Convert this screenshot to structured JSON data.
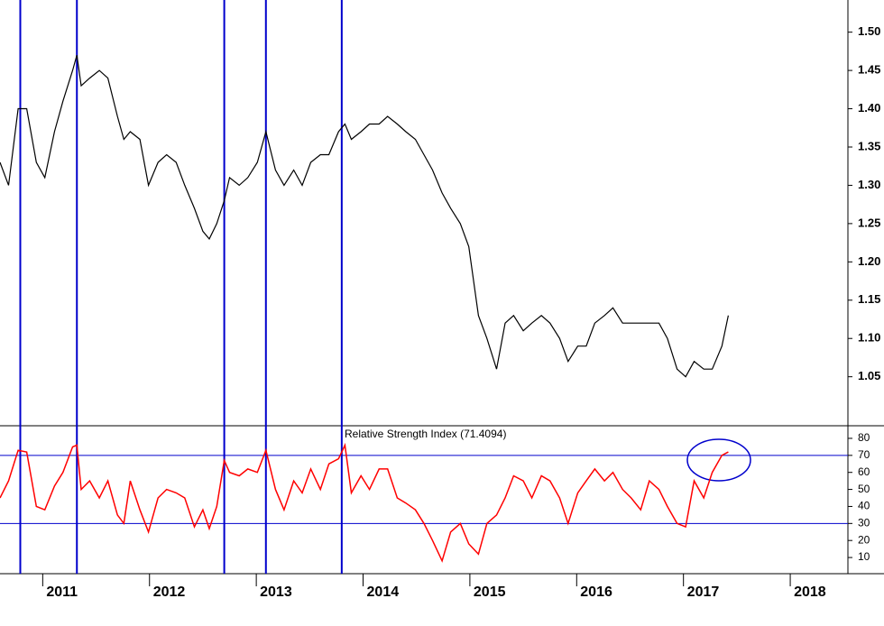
{
  "chart_data": [
    {
      "type": "line",
      "color": "#000000",
      "x": [
        2010.6,
        2010.68,
        2010.77,
        2010.85,
        2010.94,
        2011.02,
        2011.11,
        2011.19,
        2011.28,
        2011.32,
        2011.36,
        2011.44,
        2011.53,
        2011.61,
        2011.7,
        2011.76,
        2011.82,
        2011.91,
        2011.99,
        2012.08,
        2012.16,
        2012.25,
        2012.33,
        2012.42,
        2012.5,
        2012.56,
        2012.63,
        2012.7,
        2012.75,
        2012.84,
        2012.92,
        2013.01,
        2013.09,
        2013.18,
        2013.26,
        2013.35,
        2013.43,
        2013.51,
        2013.6,
        2013.68,
        2013.77,
        2013.83,
        2013.89,
        2013.98,
        2014.06,
        2014.15,
        2014.23,
        2014.32,
        2014.4,
        2014.49,
        2014.57,
        2014.65,
        2014.74,
        2014.82,
        2014.91,
        2014.99,
        2015.08,
        2015.16,
        2015.25,
        2015.33,
        2015.41,
        2015.5,
        2015.58,
        2015.67,
        2015.75,
        2015.84,
        2015.92,
        2016.01,
        2016.09,
        2016.17,
        2016.26,
        2016.34,
        2016.43,
        2016.51,
        2016.6,
        2016.68,
        2016.77,
        2016.85,
        2016.94,
        2017.02,
        2017.1,
        2017.19,
        2017.27,
        2017.36,
        2017.42
      ],
      "values": [
        1.33,
        1.3,
        1.4,
        1.4,
        1.33,
        1.31,
        1.37,
        1.41,
        1.45,
        1.47,
        1.43,
        1.44,
        1.45,
        1.44,
        1.39,
        1.36,
        1.37,
        1.36,
        1.3,
        1.33,
        1.34,
        1.33,
        1.3,
        1.27,
        1.24,
        1.23,
        1.25,
        1.28,
        1.31,
        1.3,
        1.31,
        1.33,
        1.37,
        1.32,
        1.3,
        1.32,
        1.3,
        1.33,
        1.34,
        1.34,
        1.37,
        1.38,
        1.36,
        1.37,
        1.38,
        1.38,
        1.39,
        1.38,
        1.37,
        1.36,
        1.34,
        1.32,
        1.29,
        1.27,
        1.25,
        1.22,
        1.13,
        1.1,
        1.06,
        1.12,
        1.13,
        1.11,
        1.12,
        1.13,
        1.12,
        1.1,
        1.07,
        1.09,
        1.09,
        1.12,
        1.13,
        1.14,
        1.12,
        1.12,
        1.12,
        1.12,
        1.12,
        1.1,
        1.06,
        1.05,
        1.07,
        1.06,
        1.06,
        1.09,
        1.13
      ],
      "xlim": [
        2010.6,
        2018.54
      ],
      "ylim": [
        0.986,
        1.542
      ],
      "yticks": [
        1.05,
        {
          "value": 1.1,
          "label": "1.10"
        },
        1.15,
        {
          "value": 1.2,
          "label": "1.20"
        },
        1.25,
        {
          "value": 1.3,
          "label": "1.30"
        },
        1.35,
        {
          "value": 1.4,
          "label": "1.40"
        },
        1.45,
        {
          "value": 1.5,
          "label": "1.50"
        }
      ],
      "vlines": [
        2010.79,
        2011.32,
        2012.7,
        2013.09,
        2013.8
      ],
      "vline_color": "#0000cc"
    },
    {
      "type": "line",
      "color": "#ff0000",
      "legend": "Relative Strength Index (71.4094)",
      "x": [
        2010.6,
        2010.68,
        2010.77,
        2010.85,
        2010.94,
        2011.02,
        2011.11,
        2011.19,
        2011.28,
        2011.32,
        2011.36,
        2011.44,
        2011.53,
        2011.61,
        2011.7,
        2011.76,
        2011.82,
        2011.91,
        2011.99,
        2012.08,
        2012.16,
        2012.25,
        2012.33,
        2012.42,
        2012.5,
        2012.56,
        2012.63,
        2012.7,
        2012.75,
        2012.84,
        2012.92,
        2013.01,
        2013.09,
        2013.18,
        2013.26,
        2013.35,
        2013.43,
        2013.51,
        2013.6,
        2013.68,
        2013.77,
        2013.83,
        2013.89,
        2013.98,
        2014.06,
        2014.15,
        2014.23,
        2014.32,
        2014.4,
        2014.49,
        2014.57,
        2014.65,
        2014.74,
        2014.82,
        2014.91,
        2014.99,
        2015.08,
        2015.16,
        2015.25,
        2015.33,
        2015.41,
        2015.5,
        2015.58,
        2015.67,
        2015.75,
        2015.84,
        2015.92,
        2016.01,
        2016.09,
        2016.17,
        2016.26,
        2016.34,
        2016.43,
        2016.51,
        2016.6,
        2016.68,
        2016.77,
        2016.85,
        2016.94,
        2017.02,
        2017.1,
        2017.19,
        2017.27,
        2017.36,
        2017.42
      ],
      "values": [
        45,
        55,
        73,
        72,
        40,
        38,
        52,
        60,
        75,
        76,
        50,
        55,
        45,
        55,
        35,
        30,
        55,
        38,
        25,
        45,
        50,
        48,
        45,
        28,
        38,
        27,
        40,
        67,
        60,
        58,
        62,
        60,
        73,
        50,
        38,
        55,
        48,
        62,
        50,
        65,
        68,
        76,
        48,
        58,
        50,
        62,
        62,
        45,
        42,
        38,
        30,
        20,
        8,
        25,
        30,
        18,
        12,
        30,
        35,
        45,
        58,
        55,
        45,
        58,
        55,
        45,
        30,
        48,
        55,
        62,
        55,
        60,
        50,
        45,
        38,
        55,
        50,
        40,
        30,
        28,
        55,
        45,
        60,
        70,
        72
      ],
      "xlim": [
        2010.6,
        2018.54
      ],
      "ylim": [
        0.5,
        87.4
      ],
      "yticks": [
        10,
        20,
        30,
        40,
        50,
        60,
        70,
        80
      ],
      "hlines": [
        70,
        30
      ],
      "hline_color": "#0000cc",
      "vlines": [
        2010.79,
        2011.32,
        2012.7,
        2013.09,
        2013.8
      ],
      "vline_color": "#0000cc",
      "xticks": [
        2011,
        2012,
        2013,
        2014,
        2015,
        2016,
        2017,
        2018
      ]
    }
  ]
}
